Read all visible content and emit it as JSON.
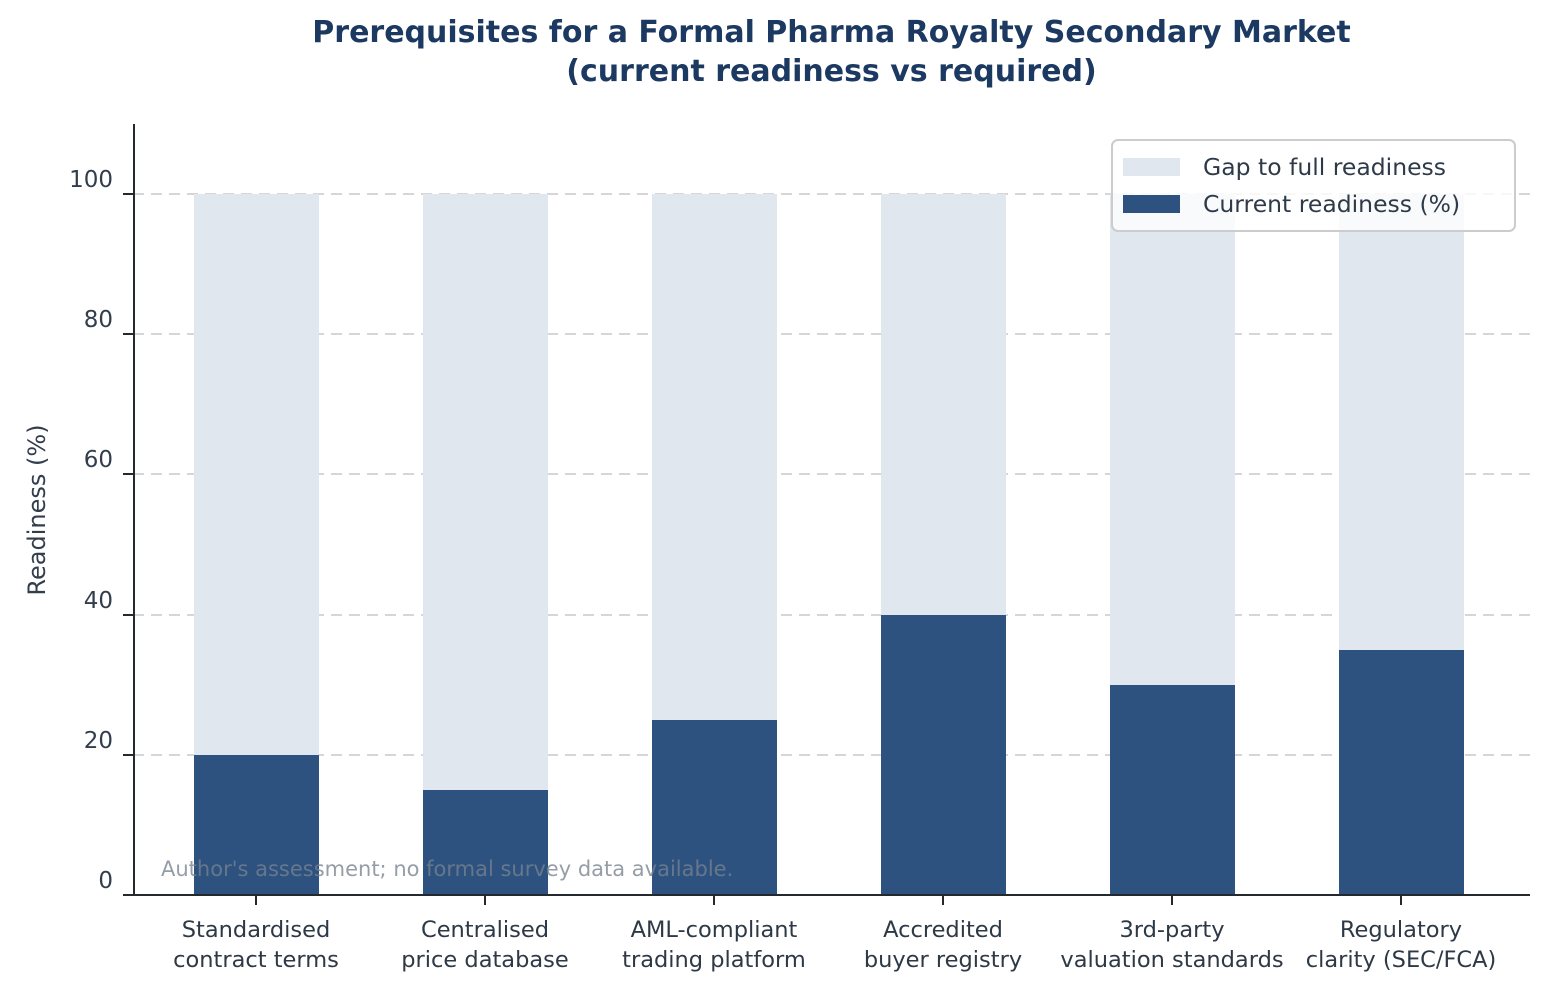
{
  "title": "Prerequisites for a Formal Pharma Royalty Secondary Market\n(current readiness vs required)",
  "y_axis": {
    "label": "Readiness (%)"
  },
  "legend": {
    "items": [
      {
        "label": "Gap to full readiness",
        "color": "#e1e7ee"
      },
      {
        "label": "Current readiness (%)",
        "color": "#2d5280"
      }
    ]
  },
  "annotation": "Author's assessment; no formal survey data available.",
  "colors": {
    "title": "#1c3961",
    "axis_text": "#333e4d",
    "spine": "#24292e",
    "grid": "#d6d6d6",
    "current_readiness": "#2d5280",
    "gap_to_readiness": "#e1e7ee",
    "annotation": "#78828f"
  },
  "chart_data": {
    "type": "bar",
    "stacked": true,
    "title": "Prerequisites for a Formal Pharma Royalty Secondary Market (current readiness vs required)",
    "xlabel": "",
    "ylabel": "Readiness (%)",
    "ylim": [
      0,
      110
    ],
    "yticks": [
      0,
      20,
      40,
      60,
      80,
      100
    ],
    "grid": "horizontal-dashed",
    "legend_position": "upper-right",
    "categories": [
      "Standardised\ncontract terms",
      "Centralised\nprice database",
      "AML-compliant\ntrading platform",
      "Accredited\nbuyer registry",
      "3rd-party\nvaluation standards",
      "Regulatory\nclarity (SEC/FCA)"
    ],
    "series": [
      {
        "name": "Current readiness (%)",
        "color": "#2d5280",
        "values": [
          20,
          15,
          25,
          40,
          30,
          35
        ]
      },
      {
        "name": "Gap to full readiness",
        "color": "#e1e7ee",
        "values": [
          80,
          85,
          75,
          60,
          70,
          65
        ]
      }
    ],
    "annotation": "Author's assessment; no formal survey data available."
  }
}
